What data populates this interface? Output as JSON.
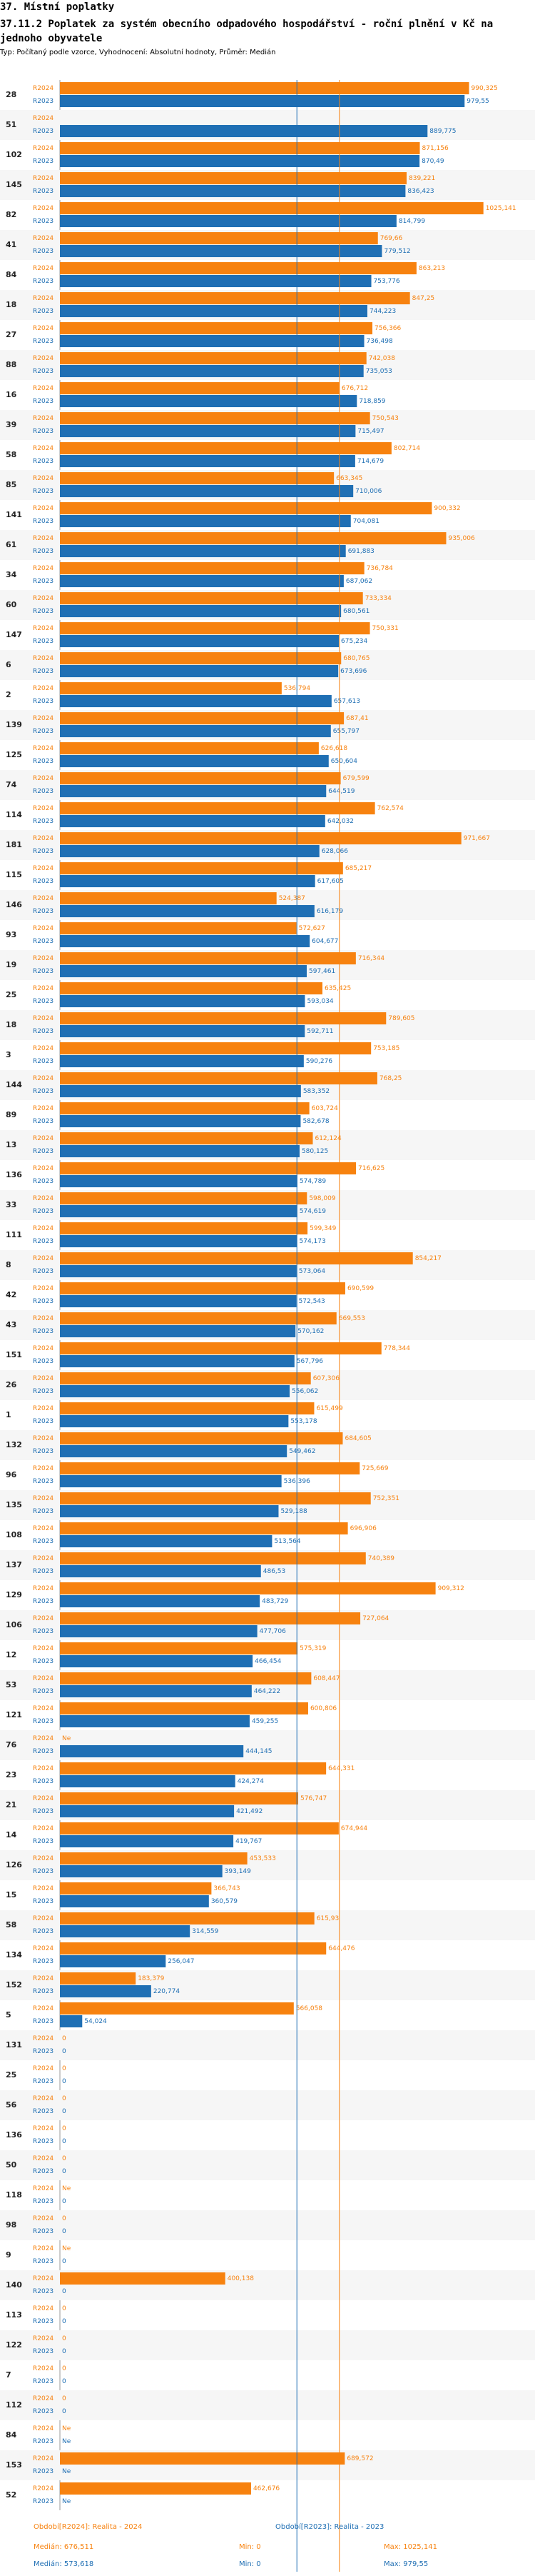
{
  "chart_data": {
    "type": "bar",
    "orientation": "horizontal",
    "section": "37. Místní poplatky",
    "title": "37.11.2 Poplatek za systém obecního odpadového hospodářství  - roční plnění v Kč na jednoho obyvatele",
    "subtitle": "Typ: Počítaný podle vzorce, Vyhodnocení: Absolutní hodnoty, Průměr: Medián",
    "categories": [
      "28",
      "51",
      "102",
      "145",
      "82",
      "41",
      "84",
      "18",
      "27",
      "88",
      "16",
      "39",
      "58",
      "85",
      "141",
      "61",
      "34",
      "60",
      "147",
      "6",
      "2",
      "139",
      "125",
      "74",
      "114",
      "181",
      "115",
      "146",
      "93",
      "19",
      "25",
      "18",
      "3",
      "144",
      "89",
      "13",
      "136",
      "33",
      "111",
      "8",
      "42",
      "43",
      "151",
      "26",
      "1",
      "132",
      "96",
      "135",
      "108",
      "137",
      "129",
      "106",
      "12",
      "53",
      "121",
      "76",
      "23",
      "21",
      "14",
      "126",
      "15",
      "58",
      "134",
      "152",
      "5",
      "131",
      "25",
      "56",
      "136",
      "50",
      "118",
      "98",
      "9",
      "140",
      "113",
      "122",
      "7",
      "112",
      "84",
      "153",
      "52"
    ],
    "xlim": [
      0,
      1150
    ],
    "series": [
      {
        "name": "R2024",
        "color": "#f7820f",
        "values": [
          990.325,
          null,
          871.156,
          839.221,
          1025.141,
          769.66,
          863.213,
          847.25,
          756.366,
          742.038,
          676.712,
          750.543,
          802.714,
          663.345,
          900.332,
          935.006,
          736.784,
          733.334,
          750.331,
          680.765,
          536.794,
          687.41,
          626.618,
          679.599,
          762.574,
          971.667,
          685.217,
          524.387,
          572.627,
          716.344,
          635.425,
          789.605,
          753.185,
          768.25,
          603.724,
          612.124,
          716.625,
          598.009,
          599.349,
          854.217,
          690.599,
          669.553,
          778.344,
          607.306,
          615.499,
          684.605,
          725.669,
          752.351,
          696.906,
          740.389,
          909.312,
          727.064,
          575.319,
          608.447,
          600.806,
          null,
          644.331,
          576.747,
          674.944,
          453.533,
          366.743,
          615.93,
          644.476,
          183.379,
          566.058,
          0,
          0,
          0,
          0,
          0,
          null,
          0,
          null,
          400.138,
          0,
          0,
          0,
          0,
          null,
          689.572,
          462.676
        ],
        "value_labels": [
          "990,325",
          null,
          "871,156",
          "839,221",
          "1025,141",
          "769,66",
          "863,213",
          "847,25",
          "756,366",
          "742,038",
          "676,712",
          "750,543",
          "802,714",
          "663,345",
          "900,332",
          "935,006",
          "736,784",
          "733,334",
          "750,331",
          "680,765",
          "536,794",
          "687,41",
          "626,618",
          "679,599",
          "762,574",
          "971,667",
          "685,217",
          "524,387",
          "572,627",
          "716,344",
          "635,425",
          "789,605",
          "753,185",
          "768,25",
          "603,724",
          "612,124",
          "716,625",
          "598,009",
          "599,349",
          "854,217",
          "690,599",
          "669,553",
          "778,344",
          "607,306",
          "615,499",
          "684,605",
          "725,669",
          "752,351",
          "696,906",
          "740,389",
          "909,312",
          "727,064",
          "575,319",
          "608,447",
          "600,806",
          "Ne",
          "644,331",
          "576,747",
          "674,944",
          "453,533",
          "366,743",
          "615,93",
          "644,476",
          "183,379",
          "566,058",
          "0",
          "0",
          "0",
          "0",
          "0",
          "Ne",
          "0",
          "Ne",
          "400,138",
          "0",
          "0",
          "0",
          "0",
          "Ne",
          "689,572",
          "462,676"
        ],
        "legend": "Období[R2024]: Realita - 2024",
        "stats": [
          {
            "label": "Medián: 676,511",
            "value": 676.511
          },
          {
            "label": "Min: 0",
            "value": 0
          },
          {
            "label": "Max: 1025,141",
            "value": 1025.141
          }
        ]
      },
      {
        "name": "R2023",
        "color": "#1f6fb4",
        "values": [
          979.55,
          889.775,
          870.49,
          836.423,
          814.799,
          779.512,
          753.776,
          744.223,
          736.498,
          735.053,
          718.859,
          715.497,
          714.679,
          710.006,
          704.081,
          691.883,
          687.062,
          680.561,
          675.234,
          673.696,
          657.613,
          655.797,
          650.604,
          644.519,
          642.032,
          628.066,
          617.605,
          616.179,
          604.677,
          597.461,
          593.034,
          592.711,
          590.276,
          583.352,
          582.678,
          580.125,
          574.789,
          574.619,
          574.173,
          573.064,
          572.543,
          570.162,
          567.796,
          556.062,
          553.178,
          549.462,
          536.396,
          529.188,
          513.564,
          486.53,
          483.729,
          477.706,
          466.454,
          464.222,
          459.255,
          444.145,
          424.274,
          421.492,
          419.767,
          393.149,
          360.579,
          314.559,
          256.047,
          220.774,
          54.024,
          0,
          0,
          0,
          0,
          0,
          0,
          0,
          0,
          0,
          0,
          0,
          0,
          0,
          null,
          null,
          null
        ],
        "value_labels": [
          "979,55",
          "889,775",
          "870,49",
          "836,423",
          "814,799",
          "779,512",
          "753,776",
          "744,223",
          "736,498",
          "735,053",
          "718,859",
          "715,497",
          "714,679",
          "710,006",
          "704,081",
          "691,883",
          "687,062",
          "680,561",
          "675,234",
          "673,696",
          "657,613",
          "655,797",
          "650,604",
          "644,519",
          "642,032",
          "628,066",
          "617,605",
          "616,179",
          "604,677",
          "597,461",
          "593,034",
          "592,711",
          "590,276",
          "583,352",
          "582,678",
          "580,125",
          "574,789",
          "574,619",
          "574,173",
          "573,064",
          "572,543",
          "570,162",
          "567,796",
          "556,062",
          "553,178",
          "549,462",
          "536,396",
          "529,188",
          "513,564",
          "486,53",
          "483,729",
          "477,706",
          "466,454",
          "464,222",
          "459,255",
          "444,145",
          "424,274",
          "421,492",
          "419,767",
          "393,149",
          "360,579",
          "314,559",
          "256,047",
          "220,774",
          "54,024",
          "0",
          "0",
          "0",
          "0",
          "0",
          "0",
          "0",
          "0",
          "0",
          "0",
          "0",
          "0",
          "0",
          "Ne",
          "Ne",
          "Ne"
        ],
        "legend": "Období[R2023]: Realita - 2023",
        "stats": [
          {
            "label": "Medián: 573,618",
            "value": 573.618
          },
          {
            "label": "Min: 0",
            "value": 0
          },
          {
            "label": "Max: 979,55",
            "value": 979.55
          }
        ]
      }
    ]
  }
}
